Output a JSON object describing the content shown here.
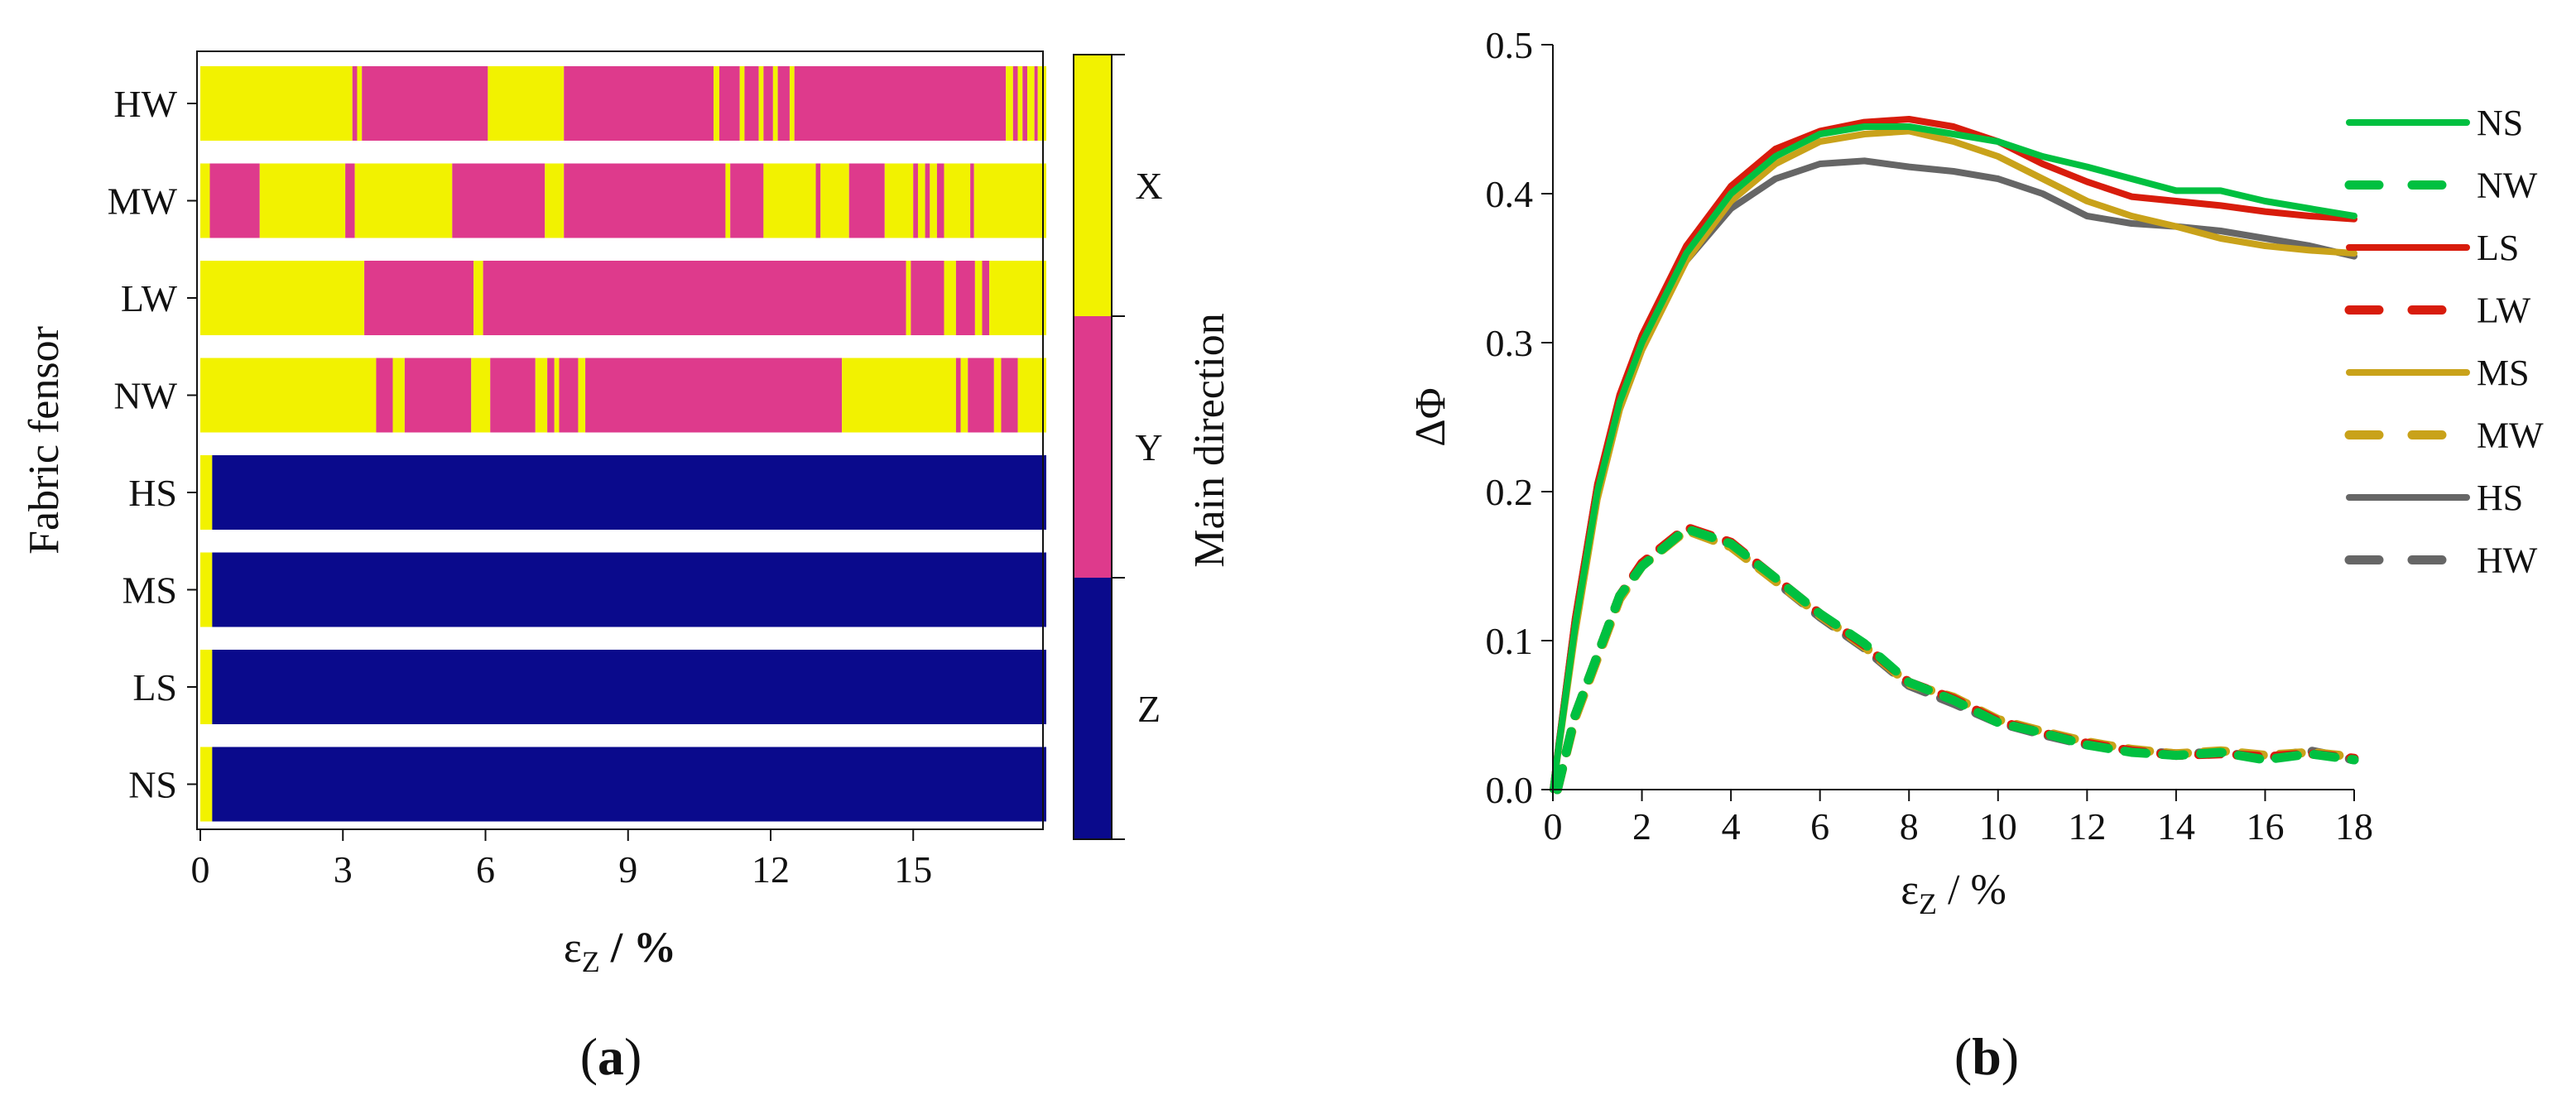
{
  "chart_data": [
    {
      "type": "heatmap",
      "panel_label": "(a)",
      "panel_letter": "a",
      "xlabel": "εZ / %",
      "xlabel_main": "ε",
      "xlabel_sub": "Z",
      "xlabel_unit": " / %",
      "ylabel": "Fabric fensor",
      "xlim": [
        0,
        17.8
      ],
      "xticks": [
        "0",
        "3",
        "6",
        "9",
        "12",
        "15"
      ],
      "colorbar": {
        "title": "Main direction",
        "levels": [
          {
            "label": "X",
            "color": "#f2f200"
          },
          {
            "label": "Y",
            "color": "#de3a8c"
          },
          {
            "label": "Z",
            "color": "#0a0a8c"
          }
        ]
      },
      "rows": [
        {
          "name": "HW",
          "segments": [
            [
              0,
              3.2,
              "X"
            ],
            [
              3.2,
              3.3,
              "Y"
            ],
            [
              3.3,
              3.4,
              "X"
            ],
            [
              3.4,
              6.05,
              "Y"
            ],
            [
              6.05,
              7.65,
              "X"
            ],
            [
              7.65,
              10.8,
              "Y"
            ],
            [
              10.8,
              10.92,
              "X"
            ],
            [
              10.92,
              11.35,
              "Y"
            ],
            [
              11.35,
              11.45,
              "X"
            ],
            [
              11.45,
              11.75,
              "Y"
            ],
            [
              11.75,
              11.85,
              "X"
            ],
            [
              11.85,
              12.05,
              "Y"
            ],
            [
              12.05,
              12.15,
              "X"
            ],
            [
              12.15,
              12.4,
              "Y"
            ],
            [
              12.4,
              12.5,
              "X"
            ],
            [
              12.5,
              16.95,
              "Y"
            ],
            [
              16.95,
              17.1,
              "X"
            ],
            [
              17.1,
              17.2,
              "Y"
            ],
            [
              17.2,
              17.3,
              "X"
            ],
            [
              17.3,
              17.4,
              "Y"
            ],
            [
              17.4,
              17.55,
              "X"
            ],
            [
              17.55,
              17.62,
              "Y"
            ],
            [
              17.62,
              17.8,
              "X"
            ]
          ]
        },
        {
          "name": "MW",
          "segments": [
            [
              0,
              0.2,
              "X"
            ],
            [
              0.2,
              1.25,
              "Y"
            ],
            [
              1.25,
              3.05,
              "X"
            ],
            [
              3.05,
              3.25,
              "Y"
            ],
            [
              3.25,
              5.3,
              "X"
            ],
            [
              5.3,
              7.25,
              "Y"
            ],
            [
              7.25,
              7.65,
              "X"
            ],
            [
              7.65,
              11.05,
              "Y"
            ],
            [
              11.05,
              11.15,
              "X"
            ],
            [
              11.15,
              11.85,
              "Y"
            ],
            [
              11.85,
              12.95,
              "X"
            ],
            [
              12.95,
              13.05,
              "Y"
            ],
            [
              13.05,
              13.65,
              "X"
            ],
            [
              13.65,
              14.4,
              "Y"
            ],
            [
              14.4,
              15.0,
              "X"
            ],
            [
              15.0,
              15.1,
              "Y"
            ],
            [
              15.1,
              15.25,
              "X"
            ],
            [
              15.25,
              15.35,
              "Y"
            ],
            [
              15.35,
              15.5,
              "X"
            ],
            [
              15.5,
              15.65,
              "Y"
            ],
            [
              15.65,
              16.2,
              "X"
            ],
            [
              16.2,
              16.28,
              "Y"
            ],
            [
              16.28,
              17.8,
              "X"
            ]
          ]
        },
        {
          "name": "LW",
          "segments": [
            [
              0,
              3.45,
              "X"
            ],
            [
              3.45,
              5.75,
              "Y"
            ],
            [
              5.75,
              5.95,
              "X"
            ],
            [
              5.95,
              14.85,
              "Y"
            ],
            [
              14.85,
              14.95,
              "X"
            ],
            [
              14.95,
              15.65,
              "Y"
            ],
            [
              15.65,
              15.9,
              "X"
            ],
            [
              15.9,
              16.3,
              "Y"
            ],
            [
              16.3,
              16.45,
              "X"
            ],
            [
              16.45,
              16.6,
              "Y"
            ],
            [
              16.6,
              17.8,
              "X"
            ]
          ]
        },
        {
          "name": "NW",
          "segments": [
            [
              0,
              3.7,
              "X"
            ],
            [
              3.7,
              4.05,
              "Y"
            ],
            [
              4.05,
              4.3,
              "X"
            ],
            [
              4.3,
              5.7,
              "Y"
            ],
            [
              5.7,
              6.1,
              "X"
            ],
            [
              6.1,
              7.05,
              "Y"
            ],
            [
              7.05,
              7.3,
              "X"
            ],
            [
              7.3,
              7.45,
              "Y"
            ],
            [
              7.45,
              7.55,
              "X"
            ],
            [
              7.55,
              7.95,
              "Y"
            ],
            [
              7.95,
              8.1,
              "X"
            ],
            [
              8.1,
              13.5,
              "Y"
            ],
            [
              13.5,
              15.9,
              "X"
            ],
            [
              15.9,
              16.0,
              "Y"
            ],
            [
              16.0,
              16.15,
              "X"
            ],
            [
              16.15,
              16.7,
              "Y"
            ],
            [
              16.7,
              16.85,
              "X"
            ],
            [
              16.85,
              17.2,
              "Y"
            ],
            [
              17.2,
              17.8,
              "X"
            ]
          ]
        },
        {
          "name": "HS",
          "segments": [
            [
              0,
              0.25,
              "X"
            ],
            [
              0.25,
              17.8,
              "Z"
            ]
          ]
        },
        {
          "name": "MS",
          "segments": [
            [
              0,
              0.25,
              "X"
            ],
            [
              0.25,
              17.8,
              "Z"
            ]
          ]
        },
        {
          "name": "LS",
          "segments": [
            [
              0,
              0.25,
              "X"
            ],
            [
              0.25,
              17.8,
              "Z"
            ]
          ]
        },
        {
          "name": "NS",
          "segments": [
            [
              0,
              0.25,
              "X"
            ],
            [
              0.25,
              17.8,
              "Z"
            ]
          ]
        }
      ]
    },
    {
      "type": "line",
      "panel_label": "(b)",
      "panel_letter": "b",
      "xlabel": "εZ / %",
      "xlabel_main": "ε",
      "xlabel_sub": "Z",
      "xlabel_unit": " / %",
      "ylabel": "ΔΦ",
      "xlim": [
        0,
        18
      ],
      "ylim": [
        0,
        0.5
      ],
      "xticks": [
        "0",
        "2",
        "4",
        "6",
        "8",
        "10",
        "12",
        "14",
        "16",
        "18"
      ],
      "yticks": [
        "0.0",
        "0.1",
        "0.2",
        "0.3",
        "0.4",
        "0.5"
      ],
      "series": [
        {
          "name": "NS",
          "color": "#00c040",
          "dashed": false,
          "x": [
            0,
            0.5,
            1,
            1.5,
            2,
            3,
            4,
            5,
            6,
            7,
            8,
            9,
            10,
            11,
            12,
            13,
            14,
            15,
            16,
            17,
            18
          ],
          "y": [
            0,
            0.11,
            0.2,
            0.26,
            0.3,
            0.36,
            0.4,
            0.425,
            0.44,
            0.445,
            0.445,
            0.44,
            0.435,
            0.425,
            0.418,
            0.41,
            0.402,
            0.402,
            0.395,
            0.39,
            0.385
          ]
        },
        {
          "name": "NW",
          "color": "#00c040",
          "dashed": true,
          "x": [
            0.1,
            0.5,
            1,
            1.5,
            2,
            3,
            4,
            5,
            6,
            7,
            8,
            9,
            10,
            11,
            12,
            13,
            14,
            15,
            16,
            17,
            18
          ],
          "y": [
            0,
            0.05,
            0.09,
            0.13,
            0.15,
            0.175,
            0.165,
            0.142,
            0.118,
            0.098,
            0.072,
            0.06,
            0.045,
            0.038,
            0.03,
            0.025,
            0.023,
            0.025,
            0.02,
            0.024,
            0.02
          ]
        },
        {
          "name": "LS",
          "color": "#d81c0c",
          "dashed": false,
          "x": [
            0,
            0.5,
            1,
            1.5,
            2,
            3,
            4,
            5,
            6,
            7,
            8,
            9,
            10,
            11,
            12,
            13,
            14,
            15,
            16,
            17,
            18
          ],
          "y": [
            0,
            0.115,
            0.205,
            0.265,
            0.305,
            0.365,
            0.405,
            0.43,
            0.442,
            0.448,
            0.45,
            0.445,
            0.435,
            0.42,
            0.408,
            0.398,
            0.395,
            0.392,
            0.388,
            0.385,
            0.383
          ]
        },
        {
          "name": "LW",
          "color": "#d81c0c",
          "dashed": true,
          "x": [
            0.1,
            0.5,
            1,
            1.5,
            2,
            3,
            4,
            5,
            6,
            7,
            8,
            9,
            10,
            11,
            12,
            13,
            14,
            15,
            16,
            17,
            18
          ],
          "y": [
            0,
            0.05,
            0.09,
            0.13,
            0.152,
            0.176,
            0.166,
            0.142,
            0.118,
            0.097,
            0.072,
            0.061,
            0.046,
            0.038,
            0.031,
            0.026,
            0.023,
            0.024,
            0.022,
            0.024,
            0.021
          ]
        },
        {
          "name": "MS",
          "color": "#c9a21a",
          "dashed": false,
          "x": [
            0,
            0.5,
            1,
            1.5,
            2,
            3,
            4,
            5,
            6,
            7,
            8,
            9,
            10,
            11,
            12,
            13,
            14,
            15,
            16,
            17,
            18
          ],
          "y": [
            0,
            0.105,
            0.195,
            0.255,
            0.295,
            0.355,
            0.395,
            0.42,
            0.435,
            0.44,
            0.442,
            0.435,
            0.425,
            0.41,
            0.395,
            0.385,
            0.378,
            0.37,
            0.365,
            0.362,
            0.36
          ]
        },
        {
          "name": "MW",
          "color": "#c9a21a",
          "dashed": true,
          "x": [
            0.1,
            0.5,
            1,
            1.5,
            2,
            3,
            4,
            5,
            6,
            7,
            8,
            9,
            10,
            11,
            12,
            13,
            14,
            15,
            16,
            17,
            18
          ],
          "y": [
            0,
            0.048,
            0.088,
            0.128,
            0.15,
            0.174,
            0.163,
            0.14,
            0.117,
            0.096,
            0.071,
            0.062,
            0.047,
            0.039,
            0.032,
            0.027,
            0.024,
            0.026,
            0.023,
            0.025,
            0.022
          ]
        },
        {
          "name": "HS",
          "color": "#666666",
          "dashed": false,
          "x": [
            0,
            0.5,
            1,
            1.5,
            2,
            3,
            4,
            5,
            6,
            7,
            8,
            9,
            10,
            11,
            12,
            13,
            14,
            15,
            16,
            17,
            18
          ],
          "y": [
            0,
            0.115,
            0.205,
            0.26,
            0.3,
            0.355,
            0.39,
            0.41,
            0.42,
            0.422,
            0.418,
            0.415,
            0.41,
            0.4,
            0.385,
            0.38,
            0.378,
            0.375,
            0.37,
            0.365,
            0.358
          ]
        },
        {
          "name": "HW",
          "color": "#666666",
          "dashed": true,
          "x": [
            0.1,
            0.5,
            1,
            1.5,
            2,
            3,
            4,
            5,
            6,
            7,
            8,
            9,
            10,
            11,
            12,
            13,
            14,
            15,
            16,
            17,
            18
          ],
          "y": [
            0,
            0.05,
            0.09,
            0.13,
            0.15,
            0.176,
            0.165,
            0.14,
            0.116,
            0.095,
            0.07,
            0.058,
            0.045,
            0.037,
            0.03,
            0.026,
            0.024,
            0.025,
            0.021,
            0.026,
            0.02
          ]
        }
      ]
    }
  ]
}
